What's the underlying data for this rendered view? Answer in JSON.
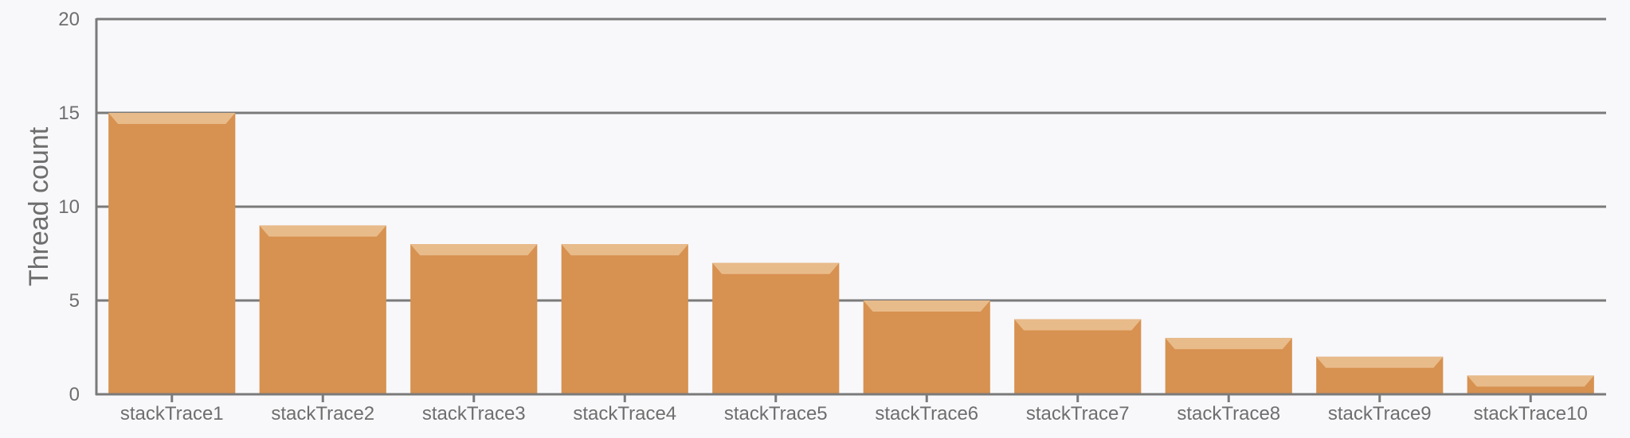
{
  "chart_data": {
    "type": "bar",
    "categories": [
      "stackTrace1",
      "stackTrace2",
      "stackTrace3",
      "stackTrace4",
      "stackTrace5",
      "stackTrace6",
      "stackTrace7",
      "stackTrace8",
      "stackTrace9",
      "stackTrace10"
    ],
    "values": [
      15,
      9,
      8,
      8,
      7,
      5,
      4,
      3,
      2,
      1
    ],
    "title": "",
    "xlabel": "",
    "ylabel": "Thread count",
    "ylim": [
      0,
      20
    ],
    "yticks": [
      0,
      5,
      10,
      15,
      20
    ],
    "grid": true,
    "bar_color": "#d79150",
    "bar_highlight_color": "#e8bb8a"
  }
}
